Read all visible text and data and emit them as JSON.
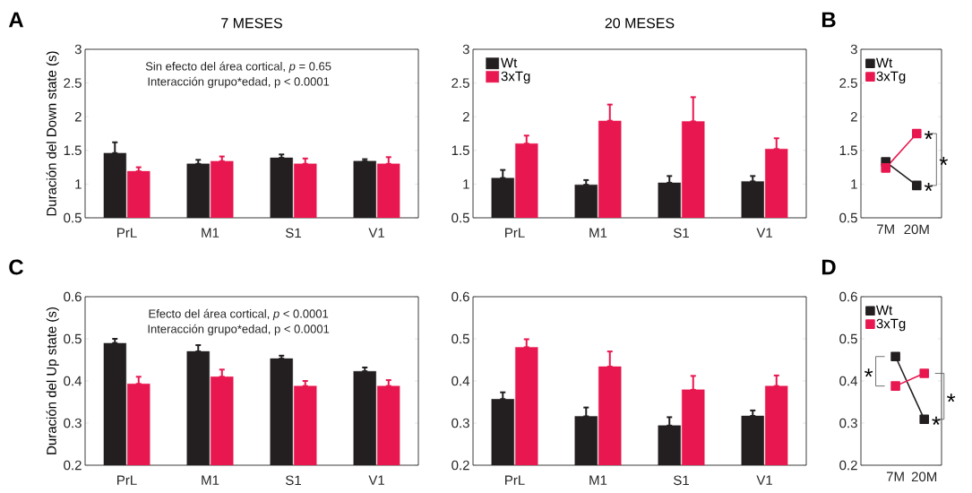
{
  "chart_data": [
    {
      "type": "bar",
      "title": "7 MESES",
      "ylabel": "Duración del Down state (s)",
      "categories": [
        "PrL",
        "M1",
        "S1",
        "V1"
      ],
      "ylim": [
        0.5,
        3
      ],
      "yticks": [
        0.5,
        1,
        1.5,
        2,
        2.5,
        3
      ],
      "annotations": [
        "A",
        "Sin efecto del área cortical, *p* = 0.65",
        "Interacción grupo*edad, p < 0.0001"
      ],
      "series": [
        {
          "color": "#231f20",
          "values": [
            1.46,
            1.3,
            1.39,
            1.34
          ],
          "errors": [
            [
              1.46,
              1.62
            ],
            [
              1.3,
              1.36
            ],
            [
              1.39,
              1.44
            ],
            [
              1.34,
              1.37
            ]
          ]
        },
        {
          "color": "#e8174f",
          "values": [
            1.19,
            1.34,
            1.3,
            1.3
          ],
          "errors": [
            [
              1.19,
              1.25
            ],
            [
              1.34,
              1.41
            ],
            [
              1.3,
              1.38
            ],
            [
              1.3,
              1.4
            ]
          ]
        }
      ]
    },
    {
      "type": "bar",
      "title": "20 MESES",
      "categories": [
        "PrL",
        "M1",
        "S1",
        "V1"
      ],
      "ylim": [
        0.5,
        3
      ],
      "yticks": [
        0.5,
        1,
        1.5,
        2,
        2.5,
        3
      ],
      "legend": "top left",
      "series": [
        {
          "name": "Wt",
          "color": "#231f20",
          "values": [
            1.09,
            0.99,
            1.02,
            1.04
          ],
          "errors": [
            [
              1.09,
              1.21
            ],
            [
              0.99,
              1.06
            ],
            [
              1.02,
              1.12
            ],
            [
              1.04,
              1.12
            ]
          ]
        },
        {
          "name": "3xTg",
          "color": "#e8174f",
          "values": [
            1.6,
            1.94,
            1.93,
            1.52
          ],
          "errors": [
            [
              1.6,
              1.72
            ],
            [
              1.94,
              2.18
            ],
            [
              1.93,
              2.29
            ],
            [
              1.52,
              1.68
            ]
          ]
        }
      ]
    },
    {
      "type": "line",
      "marker": "square",
      "line_style": "solid",
      "legend": "top left",
      "categories": [
        "7M",
        "20M"
      ],
      "ylim": [
        0.5,
        3
      ],
      "yticks": [
        0.5,
        1,
        1.5,
        2,
        2.5,
        3
      ],
      "annotations": [
        "B",
        {
          "text": "*",
          "x": "20M",
          "y": 1.75
        },
        {
          "text": "*",
          "x": "20M",
          "y": 0.98
        },
        "*"
      ],
      "series": [
        {
          "name": "Wt",
          "color": "#231f20",
          "values": [
            1.33,
            0.98
          ]
        },
        {
          "name": "3xTg",
          "color": "#e8174f",
          "values": [
            1.24,
            1.75
          ]
        }
      ]
    },
    {
      "type": "bar",
      "ylabel": "Duración del Up state (s)",
      "categories": [
        "PrL",
        "M1",
        "S1",
        "V1"
      ],
      "ylim": [
        0.2,
        0.6
      ],
      "yticks": [
        0.2,
        0.3,
        0.4,
        0.5,
        0.6
      ],
      "annotations": [
        "C",
        "Efecto del área cortical, *p* < 0.0001",
        "Interacción grupo*edad, p < 0.0001"
      ],
      "series": [
        {
          "color": "#231f20",
          "values": [
            0.49,
            0.47,
            0.453,
            0.423
          ],
          "errors": [
            [
              0.49,
              0.5
            ],
            [
              0.47,
              0.485
            ],
            [
              0.453,
              0.46
            ],
            [
              0.423,
              0.432
            ]
          ]
        },
        {
          "color": "#e8174f",
          "values": [
            0.393,
            0.41,
            0.388,
            0.388
          ],
          "errors": [
            [
              0.393,
              0.41
            ],
            [
              0.41,
              0.427
            ],
            [
              0.388,
              0.4
            ],
            [
              0.388,
              0.402
            ]
          ]
        }
      ]
    },
    {
      "type": "bar",
      "categories": [
        "PrL",
        "M1",
        "S1",
        "V1"
      ],
      "ylim": [
        0.2,
        0.6
      ],
      "yticks": [
        0.2,
        0.3,
        0.4,
        0.5,
        0.6
      ],
      "series": [
        {
          "color": "#231f20",
          "values": [
            0.357,
            0.316,
            0.294,
            0.317
          ],
          "errors": [
            [
              0.357,
              0.373
            ],
            [
              0.316,
              0.337
            ],
            [
              0.294,
              0.314
            ],
            [
              0.317,
              0.33
            ]
          ]
        },
        {
          "color": "#e8174f",
          "values": [
            0.48,
            0.434,
            0.379,
            0.388
          ],
          "errors": [
            [
              0.48,
              0.499
            ],
            [
              0.434,
              0.47
            ],
            [
              0.379,
              0.412
            ],
            [
              0.388,
              0.413
            ]
          ]
        }
      ]
    },
    {
      "type": "line",
      "marker": "square",
      "line_style": "solid",
      "legend": "top left",
      "categories": [
        "7M",
        "20M"
      ],
      "ylim": [
        0.2,
        0.6
      ],
      "yticks": [
        0.2,
        0.3,
        0.4,
        0.5,
        0.6
      ],
      "annotations": [
        "D",
        "*",
        {
          "text": "*",
          "x": "20M",
          "y": 0.309
        },
        "*"
      ],
      "series": [
        {
          "name": "Wt",
          "color": "#231f20",
          "values": [
            0.458,
            0.309
          ]
        },
        {
          "name": "3xTg",
          "color": "#e8174f",
          "values": [
            0.388,
            0.418
          ]
        }
      ]
    }
  ]
}
